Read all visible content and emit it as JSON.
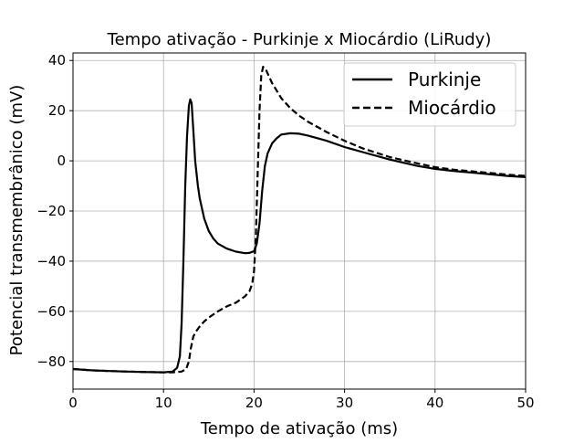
{
  "chart_data": {
    "type": "line",
    "title": "Tempo ativação - Purkinje x Miocárdio (LiRudy)",
    "xlabel": "Tempo de ativação (ms)",
    "ylabel": "Potencial transmembrânico (mV)",
    "xlim": [
      0,
      50
    ],
    "ylim": [
      -91,
      43
    ],
    "xticks": [
      0,
      10,
      20,
      30,
      40,
      50
    ],
    "yticks": [
      -80,
      -60,
      -40,
      -20,
      0,
      20,
      40
    ],
    "grid": true,
    "legend_position": "top-right",
    "series": [
      {
        "name": "Purkinje",
        "style": "solid",
        "color": "#000000",
        "x": [
          0,
          2,
          4,
          6,
          8,
          10,
          11,
          11.5,
          11.8,
          12.0,
          12.2,
          12.4,
          12.6,
          12.8,
          12.95,
          13.1,
          13.3,
          13.5,
          13.8,
          14.0,
          14.5,
          15.0,
          15.5,
          16.0,
          17.0,
          18.0,
          19.0,
          19.5,
          20.0,
          20.3,
          20.6,
          20.9,
          21.2,
          21.5,
          22.0,
          22.5,
          23.0,
          24.0,
          25.0,
          26.0,
          28.0,
          30.0,
          32.0,
          35.0,
          38.0,
          40.0,
          42.0,
          45.0,
          48.0,
          50.0
        ],
        "y": [
          -83,
          -83.5,
          -83.8,
          -84,
          -84.2,
          -84.3,
          -84,
          -82.5,
          -78,
          -65,
          -40,
          -10,
          10,
          22,
          24.5,
          23,
          12,
          0,
          -10,
          -15,
          -23,
          -28,
          -31,
          -33,
          -35,
          -36.2,
          -36.8,
          -36.7,
          -36,
          -33,
          -25,
          -12,
          -2,
          3,
          7,
          9,
          10.5,
          11,
          10.8,
          10,
          8,
          5.5,
          3.5,
          0.5,
          -2,
          -3.2,
          -4,
          -5,
          -6,
          -6.5
        ]
      },
      {
        "name": "Miocárdio",
        "style": "dashed",
        "color": "#000000",
        "x": [
          0,
          2,
          4,
          6,
          8,
          10,
          11,
          12,
          12.5,
          12.8,
          13.0,
          13.3,
          13.6,
          14.0,
          14.5,
          15,
          16,
          17,
          18,
          19,
          19.5,
          19.8,
          20.0,
          20.2,
          20.4,
          20.6,
          20.8,
          21.0,
          21.3,
          21.6,
          22,
          22.5,
          23,
          24,
          25,
          26,
          28,
          30,
          32,
          35,
          38,
          40,
          42,
          45,
          48,
          50
        ],
        "y": [
          -83,
          -83.5,
          -83.8,
          -84,
          -84.2,
          -84.3,
          -84.3,
          -84,
          -83,
          -80,
          -75,
          -70,
          -68,
          -66,
          -64,
          -62.5,
          -60,
          -58,
          -56.5,
          -54,
          -52,
          -49,
          -44,
          -30,
          -5,
          20,
          34,
          37.5,
          36.5,
          34,
          31,
          28,
          25,
          21,
          18,
          15.5,
          11.5,
          8,
          5,
          1.5,
          -1,
          -2.5,
          -3.5,
          -4.5,
          -5.5,
          -6
        ]
      }
    ]
  }
}
